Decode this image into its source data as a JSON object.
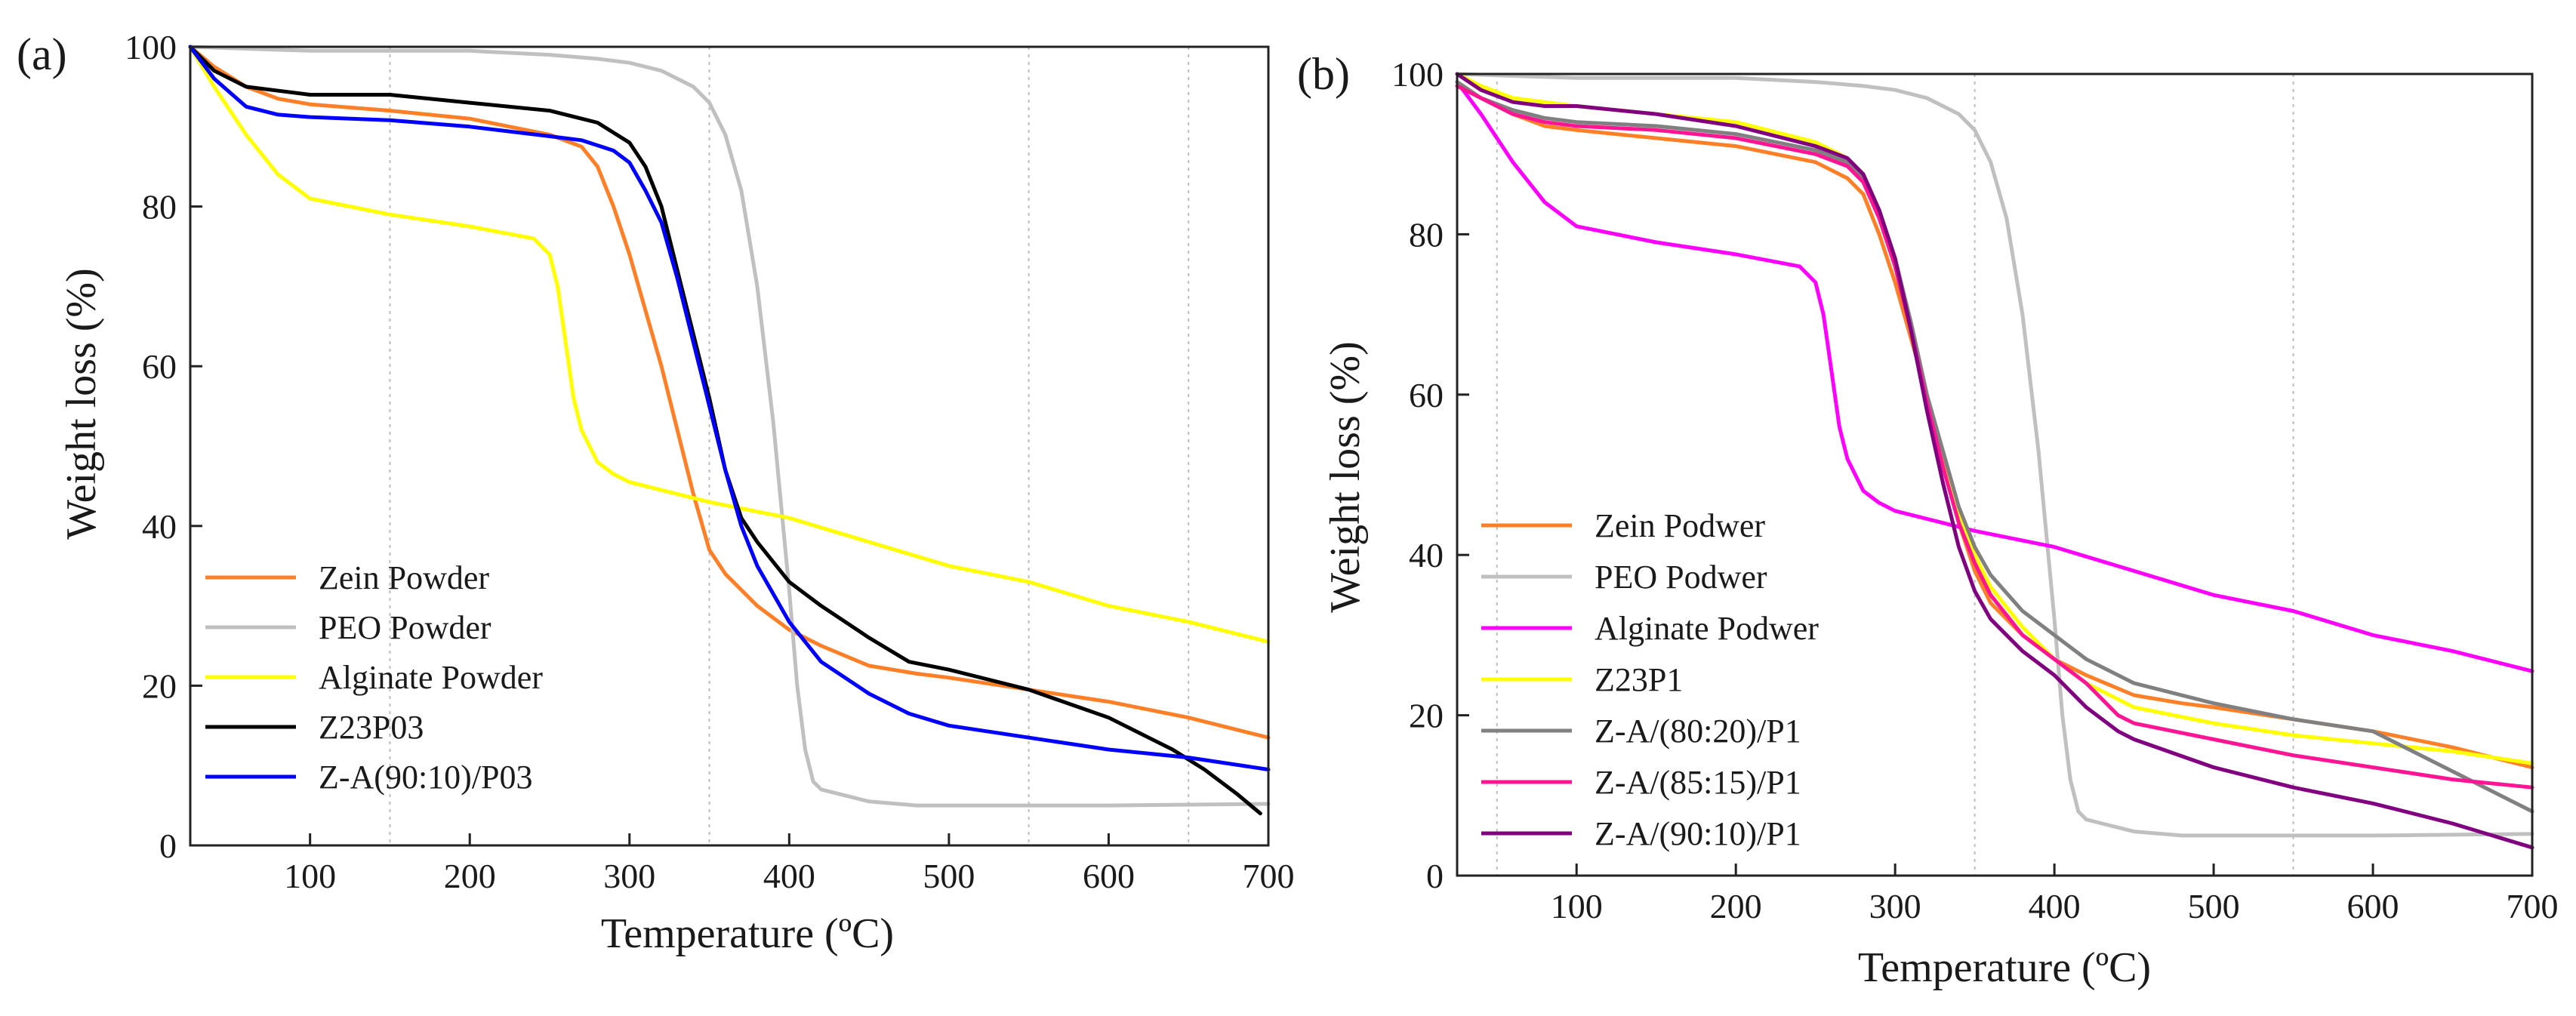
{
  "chart_data": [
    {
      "panel": "(a)",
      "type": "line",
      "xlabel": "Temperature (ºC)",
      "ylabel": "Weight loss (%)",
      "xlim": [
        25,
        700
      ],
      "ylim": [
        0,
        100
      ],
      "xticks": [
        100,
        200,
        300,
        400,
        500,
        600,
        700
      ],
      "yticks": [
        0,
        20,
        40,
        60,
        80,
        100
      ],
      "grid_x": [
        150,
        350,
        550,
        650
      ],
      "legend_position": "lower-left",
      "series": [
        {
          "name": "Zein Powder",
          "color": "#ff7f27",
          "x": [
            25,
            40,
            60,
            80,
            100,
            150,
            200,
            250,
            270,
            280,
            290,
            300,
            310,
            320,
            330,
            340,
            350,
            360,
            380,
            400,
            420,
            450,
            480,
            500,
            550,
            600,
            650,
            700
          ],
          "y": [
            100,
            97.5,
            95,
            93.5,
            92.8,
            92,
            91,
            89,
            87.5,
            85,
            80,
            74,
            67,
            60,
            52,
            44,
            37,
            34,
            30,
            27,
            25,
            22.5,
            21.5,
            21,
            19.5,
            18,
            16,
            13.5
          ]
        },
        {
          "name": "PEO Powder",
          "color": "#c0c0c0",
          "x": [
            25,
            100,
            200,
            250,
            280,
            300,
            320,
            340,
            350,
            360,
            370,
            380,
            390,
            400,
            405,
            410,
            415,
            420,
            430,
            450,
            480,
            500,
            600,
            700
          ],
          "y": [
            100,
            99.5,
            99.5,
            99,
            98.5,
            98,
            97,
            95,
            93,
            89,
            82,
            70,
            53,
            32,
            20,
            12,
            8,
            7,
            6.5,
            5.5,
            5,
            5,
            5,
            5.2
          ]
        },
        {
          "name": "Alginate Powder",
          "color": "#ffff00",
          "x": [
            25,
            40,
            60,
            80,
            100,
            150,
            200,
            240,
            250,
            255,
            260,
            265,
            270,
            275,
            280,
            290,
            300,
            350,
            400,
            450,
            500,
            550,
            600,
            650,
            700
          ],
          "y": [
            100,
            95,
            89,
            84,
            81,
            79,
            77.5,
            76,
            74,
            70,
            63,
            56,
            52,
            50,
            48,
            46.5,
            45.5,
            43,
            41,
            38,
            35,
            33,
            30,
            28,
            25.5
          ]
        },
        {
          "name": "Z23P03",
          "color": "#000000",
          "x": [
            25,
            40,
            60,
            80,
            100,
            150,
            200,
            250,
            280,
            300,
            310,
            320,
            330,
            340,
            350,
            360,
            370,
            380,
            400,
            420,
            450,
            475,
            500,
            550,
            600,
            620,
            640,
            660,
            680,
            695
          ],
          "y": [
            100,
            97,
            95,
            94.5,
            94,
            94,
            93,
            92,
            90.5,
            88,
            85,
            80,
            72,
            64,
            56,
            47,
            41,
            38,
            33,
            30,
            26,
            23,
            22,
            19.5,
            16,
            14,
            12,
            9.5,
            6.5,
            4
          ]
        },
        {
          "name": "Z-A(90:10)/P03",
          "color": "#0000ff",
          "x": [
            25,
            40,
            60,
            80,
            100,
            150,
            200,
            250,
            270,
            290,
            300,
            310,
            320,
            330,
            340,
            350,
            360,
            370,
            380,
            400,
            420,
            450,
            475,
            500,
            550,
            600,
            650,
            700
          ],
          "y": [
            100,
            96,
            92.5,
            91.5,
            91.2,
            90.8,
            90,
            88.8,
            88.3,
            87,
            85.5,
            82,
            78,
            71,
            63,
            55,
            47,
            40,
            35,
            28,
            23,
            19,
            16.5,
            15,
            13.5,
            12,
            11,
            9.5
          ]
        }
      ]
    },
    {
      "panel": "(b)",
      "type": "line",
      "xlabel": "Temperature (ºC)",
      "ylabel": "Weight loss (%)",
      "xlim": [
        25,
        700
      ],
      "ylim": [
        0,
        100
      ],
      "xticks": [
        100,
        200,
        300,
        400,
        500,
        600,
        700
      ],
      "yticks": [
        0,
        20,
        40,
        60,
        80,
        100
      ],
      "grid_x": [
        50,
        350,
        550
      ],
      "legend_position": "lower-left",
      "series": [
        {
          "name": "Zein Podwer",
          "color": "#ff7f27",
          "x": [
            25,
            40,
            60,
            80,
            100,
            150,
            200,
            250,
            270,
            280,
            290,
            300,
            310,
            320,
            330,
            340,
            350,
            360,
            380,
            400,
            420,
            450,
            480,
            500,
            550,
            600,
            650,
            700
          ],
          "y": [
            99,
            97,
            95,
            93.5,
            93,
            92,
            91,
            89,
            87,
            85,
            80,
            74,
            67,
            60,
            52,
            44,
            38,
            34,
            30,
            27,
            25,
            22.5,
            21.5,
            21,
            19.5,
            18,
            16,
            13.5
          ]
        },
        {
          "name": "PEO Podwer",
          "color": "#c0c0c0",
          "x": [
            25,
            100,
            200,
            250,
            280,
            300,
            320,
            340,
            350,
            360,
            370,
            380,
            390,
            400,
            405,
            410,
            415,
            420,
            430,
            450,
            480,
            500,
            600,
            700
          ],
          "y": [
            100,
            99.5,
            99.5,
            99,
            98.5,
            98,
            97,
            95,
            93,
            89,
            82,
            70,
            53,
            32,
            20,
            12,
            8,
            7,
            6.5,
            5.5,
            5,
            5,
            5,
            5.2
          ]
        },
        {
          "name": "Alginate Podwer",
          "color": "#ff00ff",
          "x": [
            25,
            40,
            60,
            80,
            100,
            150,
            200,
            240,
            250,
            255,
            260,
            265,
            270,
            275,
            280,
            290,
            300,
            350,
            400,
            450,
            500,
            550,
            600,
            650,
            700
          ],
          "y": [
            99,
            95,
            89,
            84,
            81,
            79,
            77.5,
            76,
            74,
            70,
            63,
            56,
            52,
            50,
            48,
            46.5,
            45.5,
            43,
            41,
            38,
            35,
            33,
            30,
            28,
            25.5
          ]
        },
        {
          "name": "Z23P1",
          "color": "#ffff00",
          "x": [
            25,
            40,
            60,
            80,
            100,
            150,
            200,
            250,
            270,
            280,
            290,
            300,
            310,
            320,
            330,
            340,
            350,
            360,
            380,
            400,
            420,
            450,
            500,
            550,
            600,
            650,
            700
          ],
          "y": [
            100,
            98.5,
            97,
            96.5,
            96,
            95,
            94,
            91.5,
            89.5,
            87.5,
            83,
            77,
            68,
            59,
            51,
            45,
            40,
            36,
            31,
            27,
            24,
            21,
            19,
            17.5,
            16.5,
            15.5,
            14
          ]
        },
        {
          "name": "Z-A/(80:20)/P1",
          "color": "#808080",
          "x": [
            25,
            40,
            60,
            80,
            100,
            150,
            200,
            250,
            270,
            280,
            290,
            300,
            310,
            320,
            330,
            340,
            350,
            360,
            380,
            400,
            420,
            450,
            500,
            550,
            600,
            650,
            700
          ],
          "y": [
            99,
            97,
            95.5,
            94.5,
            94,
            93.5,
            92.5,
            90.5,
            89,
            87,
            83,
            77,
            69,
            60,
            53,
            46,
            41,
            37.5,
            33,
            30,
            27,
            24,
            21.5,
            19.5,
            18,
            13,
            8
          ]
        },
        {
          "name": "Z-A/(85:15)/P1",
          "color": "#ff1493",
          "x": [
            25,
            40,
            60,
            80,
            100,
            150,
            200,
            250,
            270,
            280,
            290,
            300,
            310,
            320,
            330,
            340,
            350,
            360,
            380,
            400,
            420,
            440,
            450,
            500,
            550,
            600,
            650,
            700
          ],
          "y": [
            98.5,
            97,
            95,
            94,
            93.5,
            93,
            92,
            90,
            88.5,
            86.5,
            82,
            76,
            68,
            59,
            51,
            44,
            39,
            35,
            30,
            27,
            24,
            20,
            19,
            17,
            15,
            13.5,
            12,
            11
          ]
        },
        {
          "name": "Z-A/(90:10)/P1",
          "color": "#800080",
          "x": [
            25,
            40,
            60,
            80,
            100,
            150,
            200,
            250,
            270,
            280,
            290,
            300,
            310,
            320,
            330,
            340,
            350,
            360,
            380,
            400,
            420,
            440,
            450,
            500,
            550,
            600,
            650,
            700
          ],
          "y": [
            100,
            98,
            96.5,
            96,
            96,
            95,
            93.5,
            91,
            89.5,
            87.5,
            83,
            77,
            68,
            58,
            49,
            41,
            35.5,
            32,
            28,
            25,
            21,
            18,
            17,
            13.5,
            11,
            9,
            6.5,
            3.5
          ]
        }
      ]
    }
  ]
}
